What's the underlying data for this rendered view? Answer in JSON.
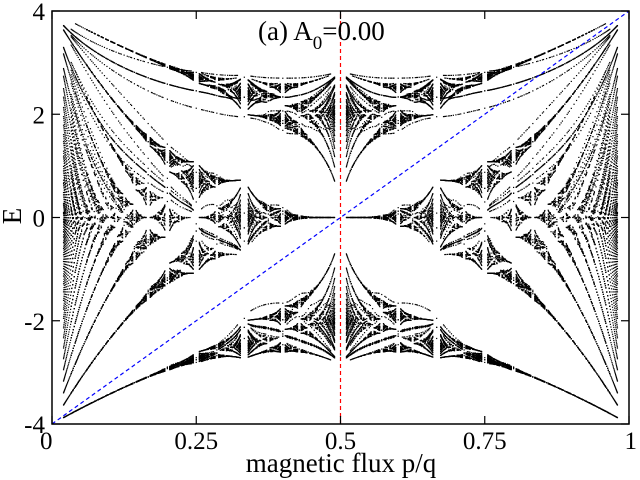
{
  "chart_data": {
    "type": "scatter",
    "title_parts": {
      "prefix": "(a) A",
      "subscript": "0",
      "suffix": "=0.00"
    },
    "xlabel": "magnetic flux p/q",
    "ylabel": "E",
    "xlim": [
      0,
      1
    ],
    "ylim": [
      -4,
      4
    ],
    "x_ticks": [
      {
        "value": 0,
        "label": "0"
      },
      {
        "value": 0.25,
        "label": "0.25"
      },
      {
        "value": 0.5,
        "label": "0.5"
      },
      {
        "value": 0.75,
        "label": "0.75"
      },
      {
        "value": 1,
        "label": "1"
      }
    ],
    "y_ticks": [
      {
        "value": -4,
        "label": "-4"
      },
      {
        "value": -2,
        "label": "-2"
      },
      {
        "value": 0,
        "label": "0"
      },
      {
        "value": 2,
        "label": "2"
      },
      {
        "value": 4,
        "label": "4"
      }
    ],
    "grid": false,
    "series": [
      {
        "kind": "spectrum-points",
        "color": "#000000"
      },
      {
        "kind": "line",
        "color": "#0000ff",
        "dash": "dashed",
        "x": [
          0,
          1
        ],
        "y": [
          -4,
          4
        ]
      },
      {
        "kind": "line",
        "color": "#ff0000",
        "dash": "dashed",
        "x": [
          0.5,
          0.5
        ],
        "y": [
          -4,
          4
        ]
      }
    ],
    "spectrum": {
      "max_q": 50,
      "n_k_samples": 4
    }
  }
}
